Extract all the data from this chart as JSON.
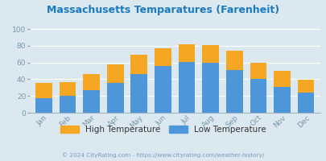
{
  "title": "Massachusetts Temparatures (Farenheit)",
  "months": [
    "Jan",
    "Feb",
    "Mar",
    "Apr",
    "May",
    "Jun",
    "Jul",
    "Aug",
    "Sep",
    "Oct",
    "Nov",
    "Dec"
  ],
  "low_temps": [
    17,
    20,
    27,
    36,
    46,
    56,
    61,
    60,
    51,
    40,
    31,
    24
  ],
  "high_temps": [
    36,
    37,
    46,
    58,
    69,
    77,
    82,
    81,
    74,
    60,
    50,
    39
  ],
  "bar_color_low": "#4d96d9",
  "bar_color_high": "#f5a623",
  "bg_color_top": "#dce8f0",
  "bg_color_bottom": "#ffffff",
  "plot_bg_color": "#dce8f0",
  "title_color": "#1a7abf",
  "axis_color": "#7799aa",
  "tick_color": "#7799aa",
  "legend_label_high": "High Temperature",
  "legend_label_low": "Low Temperature",
  "legend_text_color": "#333333",
  "footer_text": "© 2024 CityRating.com - https://www.cityrating.com/weather-history/",
  "footer_color": "#7799bb",
  "ylim": [
    0,
    100
  ],
  "yticks": [
    0,
    20,
    40,
    60,
    80,
    100
  ],
  "grid_color": "#ffffff",
  "bar_width": 0.7
}
